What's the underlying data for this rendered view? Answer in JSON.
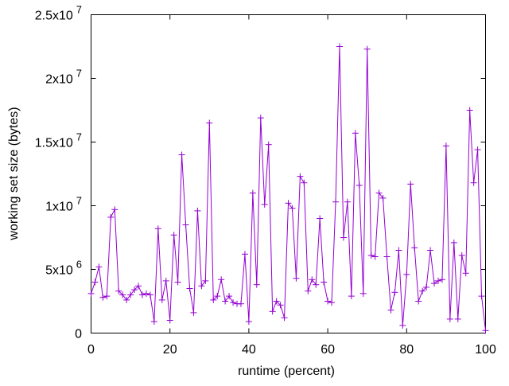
{
  "chart_data": {
    "type": "line",
    "title": "",
    "xlabel": "runtime (percent)",
    "ylabel": "working set size (bytes)",
    "xlim": [
      0,
      100
    ],
    "ylim": [
      0,
      25000000
    ],
    "grid": false,
    "legend": "none",
    "marker": "plus",
    "colors": {
      "series": "#9400d3",
      "axis": "#000000"
    },
    "x_ticks": [
      {
        "value": 0,
        "label": "0"
      },
      {
        "value": 20,
        "label": "20"
      },
      {
        "value": 40,
        "label": "40"
      },
      {
        "value": 60,
        "label": "60"
      },
      {
        "value": 80,
        "label": "80"
      },
      {
        "value": 100,
        "label": "100"
      }
    ],
    "y_ticks": [
      {
        "value": 0,
        "mantissa": "0",
        "exp": ""
      },
      {
        "value": 5000000,
        "mantissa": "5x10",
        "exp": "6"
      },
      {
        "value": 10000000,
        "mantissa": "1x10",
        "exp": "7"
      },
      {
        "value": 15000000,
        "mantissa": "1.5x10",
        "exp": "7"
      },
      {
        "value": 20000000,
        "mantissa": "2x10",
        "exp": "7"
      },
      {
        "value": 25000000,
        "mantissa": "2.5x10",
        "exp": "7"
      }
    ],
    "series": [
      {
        "x": [
          0,
          1,
          2,
          3,
          4,
          5,
          6,
          7,
          8,
          9,
          10,
          11,
          12,
          13,
          14,
          15,
          16,
          17,
          18,
          19,
          20,
          21,
          22,
          23,
          24,
          25,
          26,
          27,
          28,
          29,
          30,
          31,
          32,
          33,
          34,
          35,
          36,
          37,
          38,
          39,
          40,
          41,
          42,
          43,
          44,
          45,
          46,
          47,
          48,
          49,
          50,
          51,
          52,
          53,
          54,
          55,
          56,
          57,
          58,
          59,
          60,
          61,
          62,
          63,
          64,
          65,
          66,
          67,
          68,
          69,
          70,
          71,
          72,
          73,
          74,
          75,
          76,
          77,
          78,
          79,
          80,
          81,
          82,
          83,
          84,
          85,
          86,
          87,
          88,
          89,
          90,
          91,
          92,
          93,
          94,
          95,
          96,
          97,
          98,
          99,
          100
        ],
        "values": [
          3100000,
          4000000,
          5200000,
          2800000,
          2900000,
          9100000,
          9700000,
          3300000,
          3000000,
          2600000,
          3000000,
          3400000,
          3700000,
          3000000,
          3100000,
          3000000,
          900000,
          8200000,
          2600000,
          4100000,
          1000000,
          7700000,
          4000000,
          14000000,
          8500000,
          3500000,
          1600000,
          9600000,
          3700000,
          4100000,
          16500000,
          2600000,
          2900000,
          4200000,
          2500000,
          2900000,
          2400000,
          2300000,
          2300000,
          6200000,
          900000,
          11000000,
          3800000,
          16900000,
          10100000,
          14800000,
          1700000,
          2500000,
          2200000,
          1200000,
          10200000,
          9800000,
          4300000,
          12300000,
          11800000,
          3300000,
          4200000,
          3800000,
          9000000,
          4000000,
          2500000,
          2400000,
          10300000,
          22500000,
          7500000,
          10300000,
          2900000,
          15700000,
          11600000,
          3100000,
          22300000,
          6100000,
          6000000,
          11000000,
          10600000,
          6000000,
          1800000,
          3200000,
          6500000,
          600000,
          4600000,
          11700000,
          6700000,
          2500000,
          3300000,
          3600000,
          6500000,
          3900000,
          4100000,
          4200000,
          14700000,
          1100000,
          7100000,
          1100000,
          6100000,
          4700000,
          17500000,
          11800000,
          14400000,
          2900000,
          200000
        ]
      }
    ]
  }
}
